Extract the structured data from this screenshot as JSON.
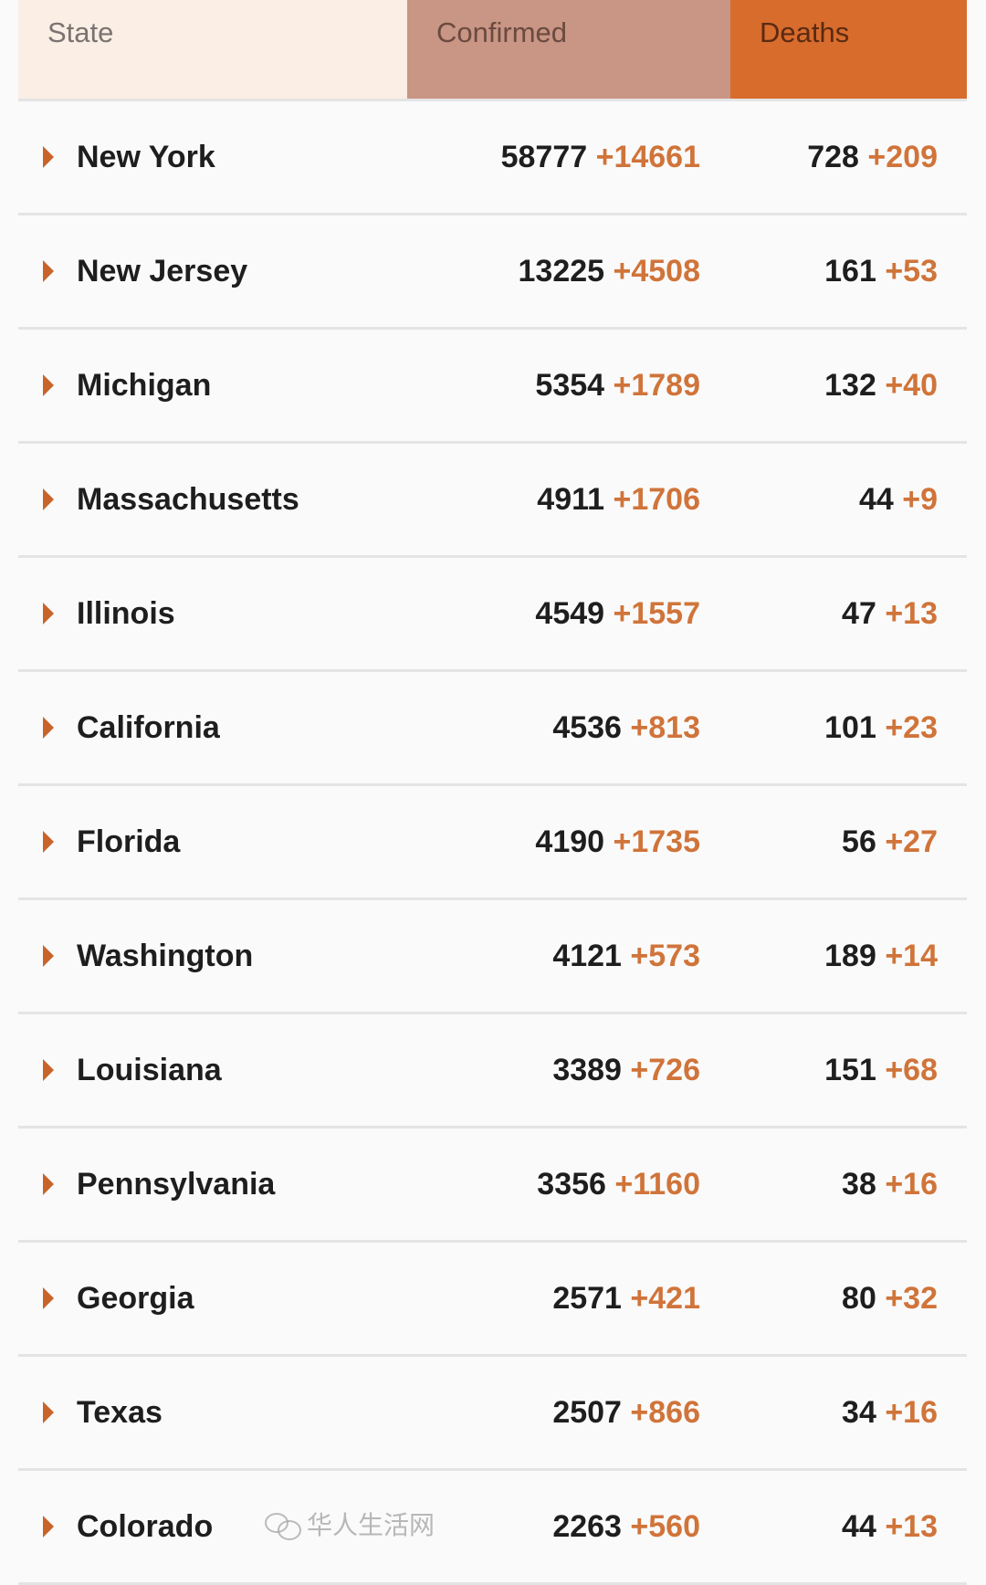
{
  "header": {
    "state": "State",
    "confirmed": "Confirmed",
    "deaths": "Deaths"
  },
  "colors": {
    "state_header": "#faeee5",
    "confirmed_header": "#c99585",
    "deaths_header": "#d86c2d",
    "delta": "#d0743a"
  },
  "rows": [
    {
      "state": "New York",
      "confirmed": "58777",
      "confirmed_delta": "+14661",
      "deaths": "728",
      "deaths_delta": "+209"
    },
    {
      "state": "New Jersey",
      "confirmed": "13225",
      "confirmed_delta": "+4508",
      "deaths": "161",
      "deaths_delta": "+53"
    },
    {
      "state": "Michigan",
      "confirmed": "5354",
      "confirmed_delta": "+1789",
      "deaths": "132",
      "deaths_delta": "+40"
    },
    {
      "state": "Massachusetts",
      "confirmed": "4911",
      "confirmed_delta": "+1706",
      "deaths": "44",
      "deaths_delta": "+9"
    },
    {
      "state": "Illinois",
      "confirmed": "4549",
      "confirmed_delta": "+1557",
      "deaths": "47",
      "deaths_delta": "+13"
    },
    {
      "state": "California",
      "confirmed": "4536",
      "confirmed_delta": "+813",
      "deaths": "101",
      "deaths_delta": "+23"
    },
    {
      "state": "Florida",
      "confirmed": "4190",
      "confirmed_delta": "+1735",
      "deaths": "56",
      "deaths_delta": "+27"
    },
    {
      "state": "Washington",
      "confirmed": "4121",
      "confirmed_delta": "+573",
      "deaths": "189",
      "deaths_delta": "+14"
    },
    {
      "state": "Louisiana",
      "confirmed": "3389",
      "confirmed_delta": "+726",
      "deaths": "151",
      "deaths_delta": "+68"
    },
    {
      "state": "Pennsylvania",
      "confirmed": "3356",
      "confirmed_delta": "+1160",
      "deaths": "38",
      "deaths_delta": "+16"
    },
    {
      "state": "Georgia",
      "confirmed": "2571",
      "confirmed_delta": "+421",
      "deaths": "80",
      "deaths_delta": "+32"
    },
    {
      "state": "Texas",
      "confirmed": "2507",
      "confirmed_delta": "+866",
      "deaths": "34",
      "deaths_delta": "+16"
    },
    {
      "state": "Colorado",
      "confirmed": "2263",
      "confirmed_delta": "+560",
      "deaths": "44",
      "deaths_delta": "+13"
    }
  ],
  "watermark": {
    "text": "华人生活网",
    "icon": "wechat-icon"
  }
}
